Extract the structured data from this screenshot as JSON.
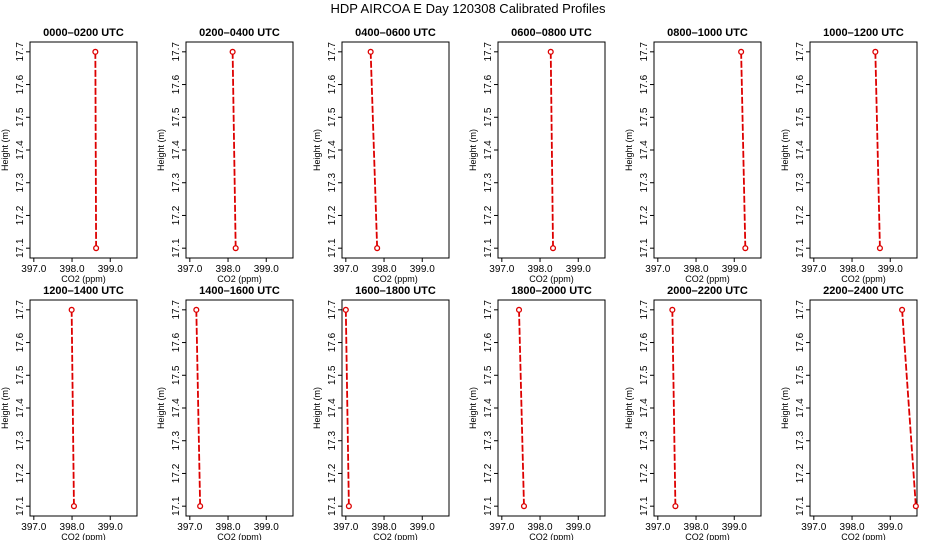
{
  "title": "HDP AIRCOA E  Day 120308  Calibrated Profiles",
  "chart_data": {
    "type": "line",
    "xlabel": "CO2 (ppm)",
    "ylabel": "Height (m)",
    "xlim": [
      396.9,
      399.7
    ],
    "ylim": [
      17.07,
      17.73
    ],
    "x_ticks": [
      "397.0",
      "398.0",
      "399.0"
    ],
    "y_ticks": [
      "17.1",
      "17.2",
      "17.3",
      "17.4",
      "17.5",
      "17.6",
      "17.7"
    ],
    "series_color": "#dd0000",
    "panels": [
      {
        "title": "0000–0200 UTC",
        "points": [
          {
            "x": 398.61,
            "y": 17.7
          },
          {
            "x": 398.63,
            "y": 17.1
          }
        ]
      },
      {
        "title": "0200–0400 UTC",
        "points": [
          {
            "x": 398.12,
            "y": 17.7
          },
          {
            "x": 398.2,
            "y": 17.1
          }
        ]
      },
      {
        "title": "0400–0600 UTC",
        "points": [
          {
            "x": 397.65,
            "y": 17.7
          },
          {
            "x": 397.82,
            "y": 17.1
          }
        ]
      },
      {
        "title": "0600–0800 UTC",
        "points": [
          {
            "x": 398.28,
            "y": 17.7
          },
          {
            "x": 398.34,
            "y": 17.1
          }
        ]
      },
      {
        "title": "0800–1000 UTC",
        "points": [
          {
            "x": 399.18,
            "y": 17.7
          },
          {
            "x": 399.29,
            "y": 17.1
          }
        ]
      },
      {
        "title": "1000–1200 UTC",
        "points": [
          {
            "x": 398.61,
            "y": 17.7
          },
          {
            "x": 398.73,
            "y": 17.1
          }
        ]
      },
      {
        "title": "1200–1400 UTC",
        "points": [
          {
            "x": 397.99,
            "y": 17.7
          },
          {
            "x": 398.05,
            "y": 17.1
          }
        ]
      },
      {
        "title": "1400–1600 UTC",
        "points": [
          {
            "x": 397.17,
            "y": 17.7
          },
          {
            "x": 397.27,
            "y": 17.1
          }
        ]
      },
      {
        "title": "1600–1800 UTC",
        "points": [
          {
            "x": 397.0,
            "y": 17.7
          },
          {
            "x": 397.08,
            "y": 17.1
          }
        ]
      },
      {
        "title": "1800–2000 UTC",
        "points": [
          {
            "x": 397.45,
            "y": 17.7
          },
          {
            "x": 397.58,
            "y": 17.1
          }
        ]
      },
      {
        "title": "2000–2200 UTC",
        "points": [
          {
            "x": 397.38,
            "y": 17.7
          },
          {
            "x": 397.46,
            "y": 17.1
          }
        ]
      },
      {
        "title": "2200–2400 UTC",
        "points": [
          {
            "x": 399.31,
            "y": 17.7
          },
          {
            "x": 399.67,
            "y": 17.1
          }
        ]
      }
    ]
  }
}
